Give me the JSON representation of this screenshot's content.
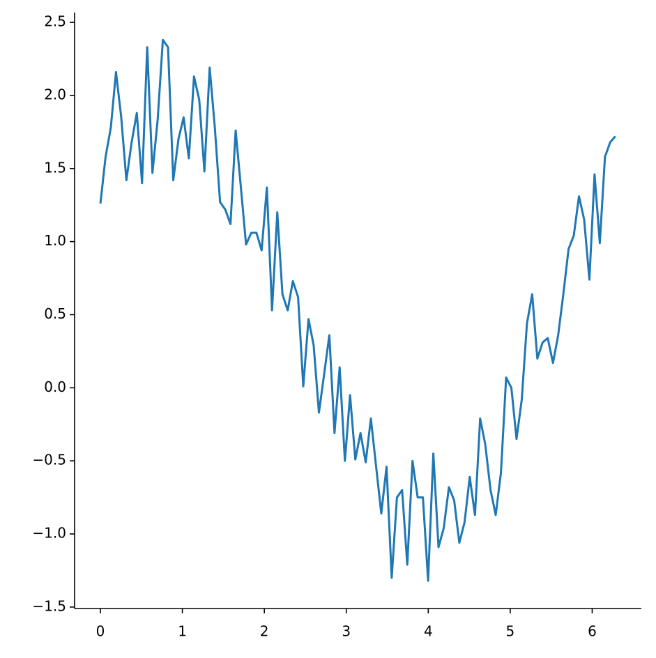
{
  "chart_data": {
    "type": "line",
    "x": [
      0,
      0.063,
      0.127,
      0.19,
      0.254,
      0.317,
      0.381,
      0.444,
      0.508,
      0.571,
      0.635,
      0.698,
      0.762,
      0.825,
      0.889,
      0.952,
      1.015,
      1.079,
      1.142,
      1.206,
      1.269,
      1.333,
      1.396,
      1.46,
      1.523,
      1.587,
      1.65,
      1.714,
      1.777,
      1.841,
      1.904,
      1.967,
      2.031,
      2.094,
      2.158,
      2.221,
      2.285,
      2.348,
      2.412,
      2.475,
      2.539,
      2.602,
      2.666,
      2.729,
      2.793,
      2.856,
      2.919,
      2.983,
      3.046,
      3.11,
      3.173,
      3.237,
      3.3,
      3.364,
      3.427,
      3.491,
      3.554,
      3.618,
      3.681,
      3.744,
      3.808,
      3.871,
      3.935,
      3.998,
      4.062,
      4.125,
      4.189,
      4.252,
      4.316,
      4.379,
      4.443,
      4.506,
      4.57,
      4.633,
      4.696,
      4.76,
      4.823,
      4.887,
      4.95,
      5.014,
      5.077,
      5.141,
      5.204,
      5.268,
      5.331,
      5.395,
      5.458,
      5.522,
      5.585,
      5.648,
      5.712,
      5.775,
      5.839,
      5.902,
      5.966,
      6.029,
      6.093,
      6.156,
      6.22,
      6.283
    ],
    "series": [
      {
        "color": "#1f77b4",
        "values": [
          1.26,
          1.58,
          1.78,
          2.16,
          1.85,
          1.42,
          1.68,
          1.88,
          1.4,
          2.33,
          1.47,
          1.83,
          2.38,
          2.33,
          1.42,
          1.7,
          1.85,
          1.57,
          2.13,
          1.97,
          1.48,
          2.19,
          1.78,
          1.27,
          1.22,
          1.12,
          1.76,
          1.37,
          0.98,
          1.06,
          1.06,
          0.94,
          1.37,
          0.53,
          1.2,
          0.64,
          0.53,
          0.73,
          0.62,
          0.01,
          0.47,
          0.29,
          -0.17,
          0.09,
          0.36,
          -0.31,
          0.14,
          -0.5,
          -0.05,
          -0.49,
          -0.31,
          -0.51,
          -0.21,
          -0.54,
          -0.86,
          -0.54,
          -1.3,
          -0.75,
          -0.7,
          -1.21,
          -0.5,
          -0.75,
          -0.75,
          -1.32,
          -0.45,
          -1.09,
          -0.96,
          -0.68,
          -0.77,
          -1.06,
          -0.92,
          -0.61,
          -0.87,
          -0.21,
          -0.39,
          -0.7,
          -0.87,
          -0.58,
          0.07,
          0.0,
          -0.35,
          -0.08,
          0.44,
          0.64,
          0.2,
          0.31,
          0.34,
          0.17,
          0.36,
          0.64,
          0.95,
          1.04,
          1.31,
          1.15,
          0.74,
          1.46,
          0.99,
          1.58,
          1.68,
          1.72
        ]
      }
    ],
    "xlim": [
      -0.315,
      6.6
    ],
    "ylim": [
      -1.51,
      2.567
    ],
    "xticks": [
      0,
      1,
      2,
      3,
      4,
      5,
      6
    ],
    "yticks": [
      {
        "value": -1.5,
        "label": "−1.5"
      },
      {
        "value": -1.0,
        "label": "−1.0"
      },
      {
        "value": -0.5,
        "label": "−0.5"
      },
      {
        "value": 0,
        "label": "0.0"
      },
      0.5,
      {
        "value": 1.0,
        "label": "1.0"
      },
      1.5,
      {
        "value": 2.0,
        "label": "2.0"
      },
      2.5
    ]
  }
}
